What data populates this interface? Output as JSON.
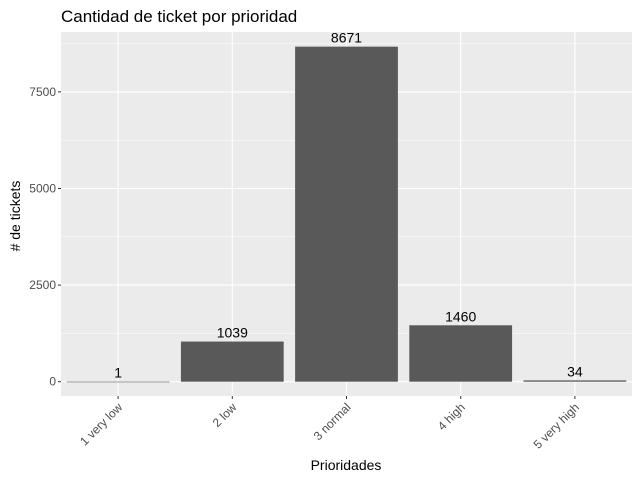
{
  "chart_data": {
    "type": "bar",
    "title": "Cantidad de ticket por prioridad",
    "xlabel": "Prioridades",
    "ylabel": "# de tickets",
    "categories": [
      "1 very low",
      "2 low",
      "3 normal",
      "4 high",
      "5 very high"
    ],
    "values": [
      1,
      1039,
      8671,
      1460,
      34
    ],
    "data_labels": [
      "1",
      "1039",
      "8671",
      "1460",
      "34"
    ],
    "ylim": [
      -370,
      9050
    ],
    "yticks": [
      0,
      2500,
      5000,
      7500
    ],
    "ytick_labels": [
      "0",
      "2500",
      "5000",
      "7500"
    ],
    "grid": true,
    "legend": "none",
    "colors": {
      "panel": "#ebebeb",
      "grid_major": "#ffffff",
      "bar": "#595959",
      "tick": "#333333"
    }
  }
}
